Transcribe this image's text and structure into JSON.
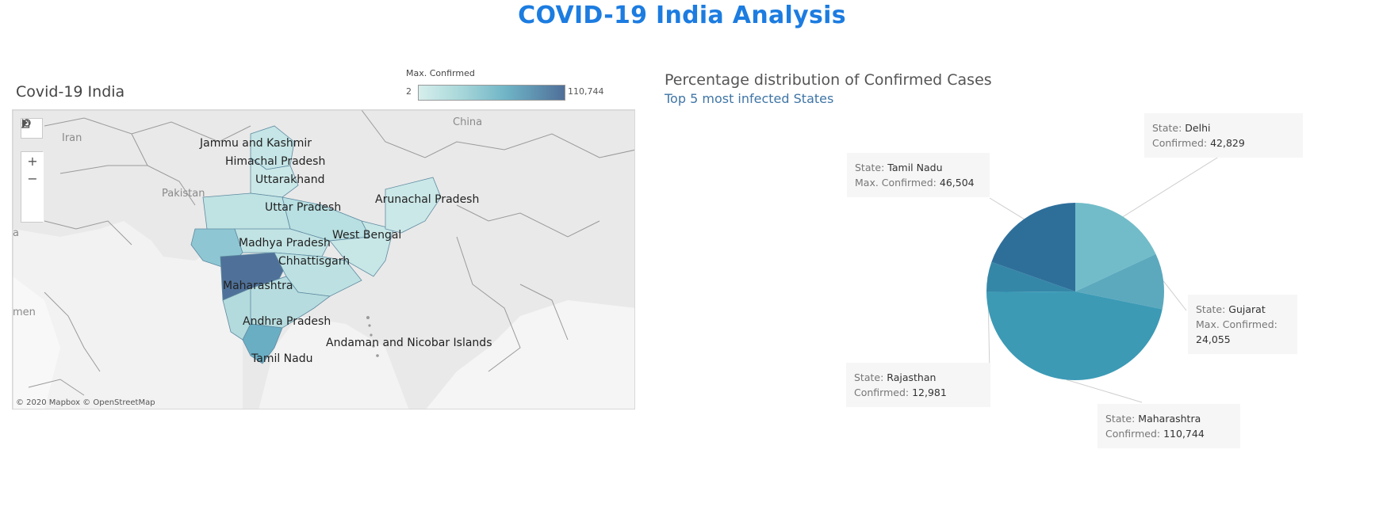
{
  "dashboard": {
    "title": "COVID-19 India Analysis"
  },
  "map": {
    "title": "Covid-19 India",
    "legend": {
      "title": "Max. Confirmed",
      "min": "2",
      "max": "110,744"
    },
    "credit": "© 2020 Mapbox © OpenStreetMap",
    "geo_labels": [
      "Iran",
      "China",
      "Pakistan",
      "a",
      "men"
    ],
    "state_labels": [
      "Jammu and Kashmir",
      "Himachal Pradesh",
      "Uttarakhand",
      "Uttar Pradesh",
      "Arunachal Pradesh",
      "Madhya Pradesh",
      "West Bengal",
      "Chhattisgarh",
      "Maharashtra",
      "Andhra Pradesh",
      "Andaman and Nicobar Islands",
      "Tamil Nadu"
    ],
    "tools": {
      "search": "search-icon",
      "zoom_in": "+",
      "zoom_out": "−"
    },
    "colors": {
      "low": "#d6eeec",
      "mid": "#6fb4c6",
      "high": "#4f6f99"
    }
  },
  "pie": {
    "title": "Percentage distribution of Confirmed Cases",
    "subtitle": "Top 5 most infected States",
    "tooltips": [
      {
        "state_key": "State:",
        "state": "Tamil Nadu",
        "value_key": "Max. Confirmed:",
        "value": "46,504"
      },
      {
        "state_key": "State:",
        "state": "Delhi",
        "value_key": "Confirmed:",
        "value": "42,829"
      },
      {
        "state_key": "State:",
        "state": "Gujarat",
        "value_key": "Max. Confirmed:",
        "value": "24,055"
      },
      {
        "state_key": "State:",
        "state": "Rajasthan",
        "value_key": "Confirmed:",
        "value": "12,981"
      },
      {
        "state_key": "State:",
        "state": "Maharashtra",
        "value_key": "Confirmed:",
        "value": "110,744"
      }
    ]
  },
  "chart_data": {
    "type": "pie",
    "categories": [
      "Maharashtra",
      "Tamil Nadu",
      "Delhi",
      "Gujarat",
      "Rajasthan"
    ],
    "values": [
      110744,
      46504,
      42829,
      24055,
      12981
    ],
    "colors": [
      "#3c9ab5",
      "#2e6f9a",
      "#72bcc9",
      "#5ca9be",
      "#3587a8"
    ]
  }
}
